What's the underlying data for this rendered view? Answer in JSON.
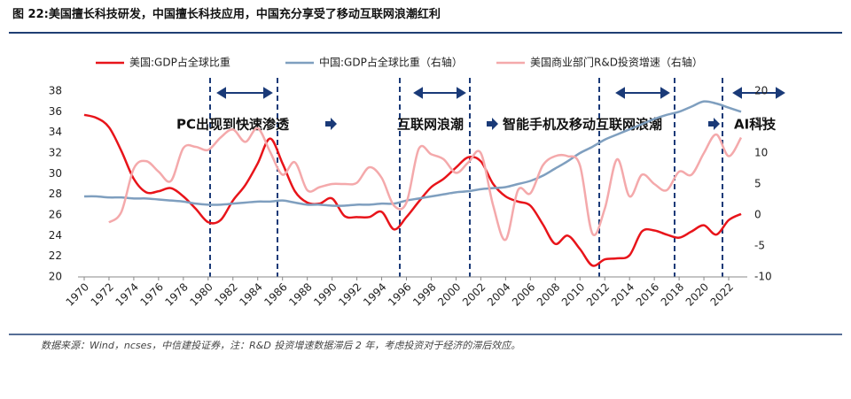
{
  "chart_data": {
    "type": "line",
    "title": "图 22:美国擅长科技研发，中国擅长科技应用，中国充分享受了移动互联网浪潮红利",
    "source": "数据来源：Wind，ncses，中信建投证券，注：R&D 投资增速数据滞后 2 年，考虑投资对于经济的滞后效应。",
    "annotations": [
      "PC出现到快速渗透",
      "互联网浪潮",
      "智能手机及移动互联网浪潮",
      "AI科技"
    ],
    "x": [
      1970,
      1971,
      1972,
      1973,
      1974,
      1975,
      1976,
      1977,
      1978,
      1979,
      1980,
      1981,
      1982,
      1983,
      1984,
      1985,
      1986,
      1987,
      1988,
      1989,
      1990,
      1991,
      1992,
      1993,
      1994,
      1995,
      1996,
      1997,
      1998,
      1999,
      2000,
      2001,
      2002,
      2003,
      2004,
      2005,
      2006,
      2007,
      2008,
      2009,
      2010,
      2011,
      2012,
      2013,
      2014,
      2015,
      2016,
      2017,
      2018,
      2019,
      2020,
      2021,
      2022,
      2023
    ],
    "xlim": [
      1969.5,
      2023.5
    ],
    "xticks": [
      1970,
      1972,
      1974,
      1976,
      1978,
      1980,
      1982,
      1984,
      1986,
      1988,
      1990,
      1992,
      1994,
      1996,
      1998,
      2000,
      2002,
      2004,
      2006,
      2008,
      2010,
      2012,
      2014,
      2016,
      2018,
      2020,
      2022
    ],
    "ylim": [
      20,
      38
    ],
    "yticks": [
      20,
      22,
      24,
      26,
      28,
      30,
      32,
      34,
      36,
      38
    ],
    "y2lim": [
      -10,
      20
    ],
    "y2ticks": [
      -10,
      -5,
      0,
      5,
      10,
      15,
      20
    ],
    "legend": "top",
    "series": [
      {
        "name": "美国:GDP占全球比重",
        "color": "#e8141a",
        "axis": "y",
        "values": [
          35.7,
          35.4,
          34.5,
          32.2,
          29.5,
          28.2,
          28.3,
          28.6,
          27.8,
          26.6,
          25.3,
          25.5,
          27.4,
          28.9,
          31.0,
          33.4,
          31.0,
          28.3,
          27.2,
          27.1,
          27.6,
          25.9,
          25.8,
          25.8,
          26.3,
          24.6,
          25.8,
          27.3,
          28.7,
          29.5,
          30.6,
          31.6,
          31.2,
          29.0,
          27.8,
          27.3,
          26.9,
          25.1,
          23.2,
          24.0,
          22.7,
          21.1,
          21.7,
          21.8,
          22.1,
          24.4,
          24.5,
          24.1,
          23.8,
          24.4,
          25.0,
          24.1,
          25.5,
          26.1
        ]
      },
      {
        "name": "中国:GDP占全球比重（右轴）",
        "color": "#7f9fbf",
        "axis": "y",
        "values": [
          27.8,
          27.8,
          27.7,
          27.7,
          27.6,
          27.6,
          27.5,
          27.4,
          27.3,
          27.1,
          27.0,
          27.0,
          27.1,
          27.2,
          27.3,
          27.3,
          27.4,
          27.2,
          27.0,
          27.0,
          26.9,
          26.9,
          27.0,
          27.0,
          27.1,
          27.1,
          27.4,
          27.6,
          27.8,
          28.0,
          28.2,
          28.3,
          28.5,
          28.6,
          28.7,
          29.0,
          29.3,
          29.8,
          30.5,
          31.2,
          32.0,
          32.6,
          33.3,
          33.8,
          34.3,
          34.8,
          35.3,
          35.7,
          36.0,
          36.5,
          37.0,
          36.8,
          36.4,
          36.0
        ]
      },
      {
        "name": "美国商业部门R&D投资增速（右轴）",
        "color": "#f4a9ab",
        "axis": "y2",
        "values": [
          null,
          null,
          -1.2,
          0.5,
          7.5,
          8.7,
          7.0,
          5.5,
          10.8,
          11.0,
          10.5,
          12.5,
          13.8,
          11.8,
          14.0,
          10.2,
          6.5,
          8.5,
          4.0,
          4.5,
          5.0,
          5.0,
          5.2,
          7.7,
          6.0,
          1.5,
          2.0,
          10.7,
          9.8,
          9.0,
          6.8,
          8.5,
          10.0,
          1.5,
          -4.0,
          4.0,
          3.5,
          8.0,
          9.5,
          9.5,
          8.0,
          -3.0,
          1.0,
          9.0,
          3.0,
          6.5,
          5.0,
          4.0,
          7.0,
          6.5,
          10.0,
          13.0,
          9.5,
          12.5
        ]
      }
    ]
  }
}
